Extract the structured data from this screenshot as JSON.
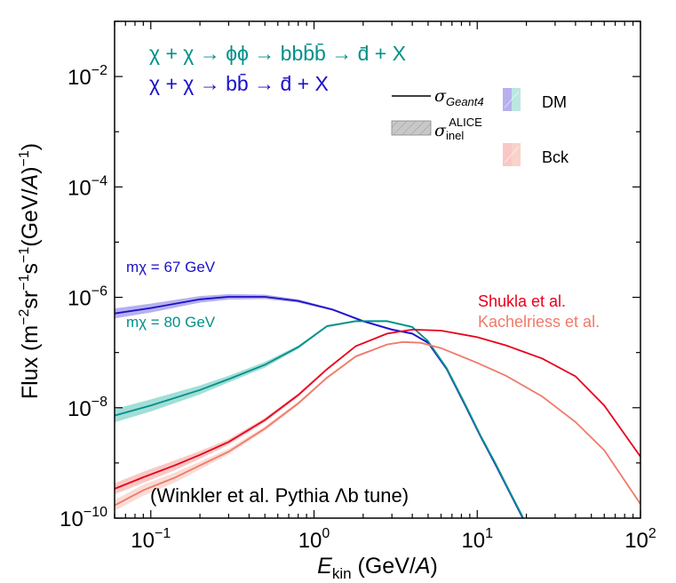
{
  "chart_data": {
    "type": "line",
    "xlabel": "E_kin (GeV/A)",
    "ylabel": "Flux (m^-2 sr^-1 s^-1 (GeV/A)^-1)",
    "x_scale": "log",
    "y_scale": "log",
    "xlim": [
      0.06,
      100
    ],
    "ylim": [
      1e-10,
      0.1
    ],
    "x_ticks": [
      {
        "value": 0.1,
        "label": "10^-1"
      },
      {
        "value": 1,
        "label": "10^0"
      },
      {
        "value": 10,
        "label": "10^1"
      },
      {
        "value": 100,
        "label": "10^2"
      }
    ],
    "y_ticks": [
      {
        "value": 1e-10,
        "label": "10^-10"
      },
      {
        "value": 1e-08,
        "label": "10^-8"
      },
      {
        "value": 1e-06,
        "label": "10^-6"
      },
      {
        "value": 0.0001,
        "label": "10^-4"
      },
      {
        "value": 0.01,
        "label": "10^-2"
      }
    ],
    "grid": false,
    "series": [
      {
        "name": "mχ = 67 GeV",
        "group": "DM",
        "color": "#1a10c8",
        "band_color": "#7a6fe0",
        "x": [
          0.06,
          0.1,
          0.2,
          0.3,
          0.5,
          0.8,
          1.3,
          2.0,
          3.0,
          4.0,
          5.0,
          6.5,
          8.5,
          10.5,
          13.0,
          16.0,
          19.0
        ],
        "y": [
          5.1e-07,
          6.4e-07,
          9.2e-07,
          1.02e-06,
          1.02e-06,
          8.6e-07,
          6e-07,
          3.7e-07,
          2.6e-07,
          2.2e-07,
          1.5e-07,
          5e-08,
          1.05e-08,
          3e-09,
          9e-10,
          2.7e-10,
          1e-10
        ],
        "band_halfwidth_dex": [
          0.09,
          0.08,
          0.06,
          0.05,
          0.04,
          0.03,
          0.02,
          0.02,
          0.02,
          0.02,
          0.02,
          0.02,
          0.02,
          0.02,
          0.02,
          0.02,
          0.02
        ]
      },
      {
        "name": "mχ = 80 GeV",
        "group": "DM",
        "color": "#009089",
        "band_color": "#55c2b6",
        "x": [
          0.06,
          0.1,
          0.2,
          0.3,
          0.5,
          0.8,
          1.2,
          1.8,
          2.8,
          4.0,
          5.0,
          6.5,
          8.5,
          10.5,
          13.0,
          16.0,
          19.0
        ],
        "y": [
          7.2e-09,
          1.1e-08,
          2.1e-08,
          3.3e-08,
          6e-08,
          1.25e-07,
          3e-07,
          3.7e-07,
          3.7e-07,
          2.9e-07,
          1.6e-07,
          5.2e-08,
          1.1e-08,
          3.1e-09,
          9.5e-10,
          2.8e-10,
          1.05e-10
        ],
        "band_halfwidth_dex": [
          0.12,
          0.11,
          0.08,
          0.06,
          0.05,
          0.03,
          0.02,
          0.02,
          0.02,
          0.02,
          0.02,
          0.02,
          0.02,
          0.02,
          0.02,
          0.02,
          0.02
        ]
      },
      {
        "name": "Shukla et al.",
        "group": "Bck",
        "color": "#e8001c",
        "band_color": "#f49a96",
        "x": [
          0.06,
          0.09,
          0.14,
          0.2,
          0.3,
          0.5,
          0.8,
          1.2,
          1.8,
          2.8,
          4.0,
          6.0,
          10.0,
          15.0,
          25.0,
          40.0,
          60.0,
          100.0
        ],
        "y": [
          3.4e-10,
          5.5e-10,
          9e-10,
          1.4e-09,
          2.4e-09,
          6e-09,
          1.7e-08,
          5e-08,
          1.3e-07,
          2.2e-07,
          2.6e-07,
          2.5e-07,
          1.9e-07,
          1.35e-07,
          7.8e-08,
          3.7e-08,
          1.1e-08,
          1.3e-09
        ],
        "band_halfwidth_dex": [
          0.1,
          0.1,
          0.09,
          0.07,
          0.05,
          0.04,
          0.03,
          0.02,
          0.02,
          0.01,
          0.01,
          0.01,
          0.01,
          0.01,
          0.01,
          0.01,
          0.01,
          0.01
        ]
      },
      {
        "name": "Kachelriess et al.",
        "group": "Bck",
        "color": "#f07a6a",
        "band_color": "#f6bfb4",
        "x": [
          0.06,
          0.09,
          0.14,
          0.2,
          0.3,
          0.5,
          0.8,
          1.2,
          1.8,
          2.8,
          3.5,
          4.5,
          6.0,
          10.0,
          15.0,
          25.0,
          40.0,
          60.0,
          100.0
        ],
        "y": [
          1.7e-10,
          3.2e-10,
          5.4e-10,
          9e-10,
          1.6e-09,
          4.2e-09,
          1.2e-08,
          3.5e-08,
          8.5e-08,
          1.4e-07,
          1.55e-07,
          1.5e-07,
          1.2e-07,
          6.5e-08,
          3.8e-08,
          1.6e-08,
          5.5e-09,
          1.7e-09,
          1.8e-10
        ],
        "band_halfwidth_dex": [
          0.1,
          0.1,
          0.09,
          0.07,
          0.05,
          0.04,
          0.03,
          0.02,
          0.02,
          0.01,
          0.01,
          0.01,
          0.01,
          0.01,
          0.01,
          0.01,
          0.01,
          0.01,
          0.01
        ]
      }
    ],
    "annotations": {
      "channel_1": "χ + χ → ϕϕ → bbb̄b̄ → d̄ + X",
      "channel_2": "χ + χ → bb̄ → d̄ + X",
      "mass_67": "mχ = 67 GeV",
      "mass_80": "mχ = 80 GeV",
      "shukla": "Shukla et al.",
      "kachelriess": "Kachelriess et al.",
      "tune": "(Winkler et al. Pythia Λb tune)"
    },
    "legend": {
      "placement": "top-right",
      "line_label": "σGeant4",
      "band_label": "σinel ALICE",
      "dm_label": "DM",
      "bck_label": "Bck"
    }
  }
}
